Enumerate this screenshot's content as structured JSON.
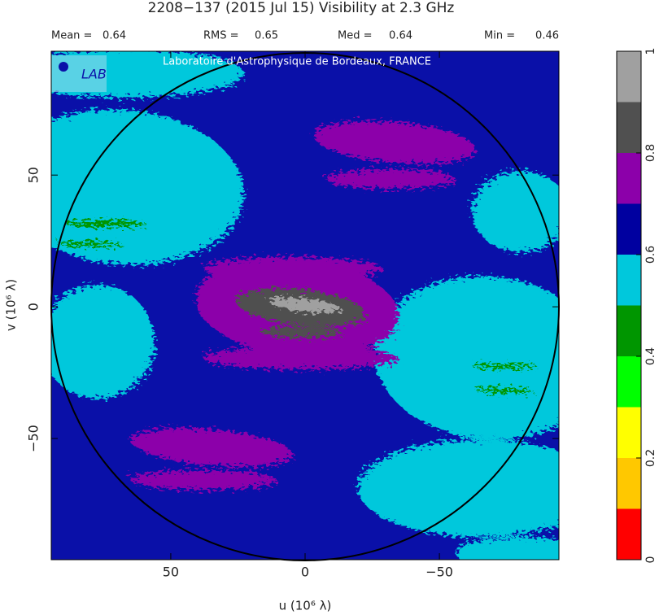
{
  "chart_data": {
    "type": "heatmap",
    "title": "2208−137  (2015 Jul 15)   Visibility at  2.3 GHz",
    "stats": [
      {
        "label": "Mean =",
        "value": 0.64
      },
      {
        "label": "RMS =",
        "value": 0.65
      },
      {
        "label": "Med =",
        "value": 0.64
      },
      {
        "label": "Min =",
        "value": 0.46
      }
    ],
    "watermark": "Laboratoire d'Astrophysique de Bordeaux, FRANCE",
    "xlabel": "u  (10⁶ λ)",
    "ylabel": "v  (10⁶ λ)",
    "xlim": [
      94.5,
      -94.5
    ],
    "xticks": [
      50,
      0,
      {
        "value": -50,
        "label": "−50"
      }
    ],
    "ylim": [
      -96,
      97
    ],
    "yticks": [
      {
        "value": -50,
        "label": "−50"
      },
      0,
      50
    ],
    "colorbar": {
      "bounds": [
        0,
        0.1,
        0.2,
        0.3,
        0.4,
        0.5,
        0.6,
        0.7,
        0.8,
        0.9,
        1
      ],
      "colors": [
        "#ff0000",
        "#ffc800",
        "#ffff00",
        "#00ff00",
        "#009600",
        "#00c8dc",
        "#0000a0",
        "#8c00aa",
        "#505050",
        "#a0a0a0"
      ],
      "ticks": [
        0,
        0.2,
        0.4,
        0.6,
        0.8,
        1
      ]
    }
  }
}
